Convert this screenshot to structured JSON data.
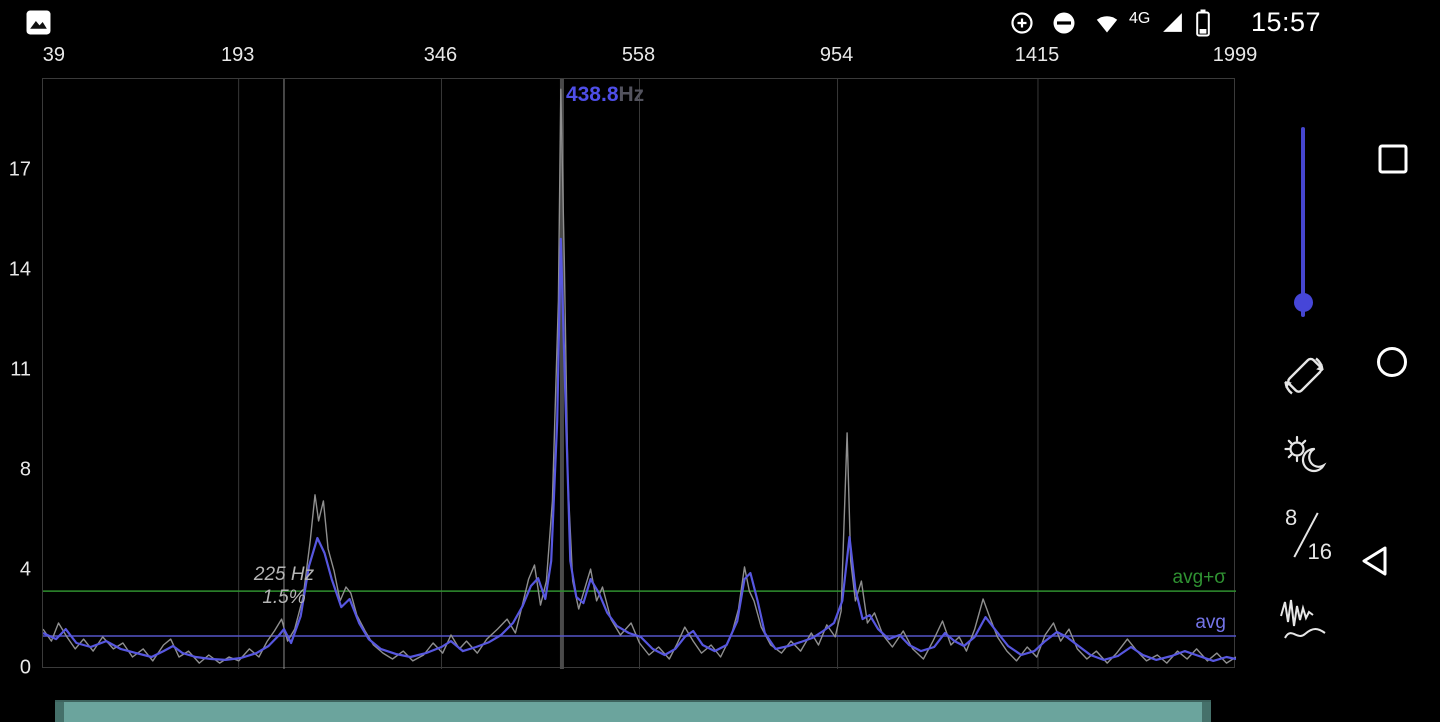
{
  "status_bar": {
    "time": "15:57",
    "network_type": "4G"
  },
  "side_panel": {
    "bit_depth_numerator": "8",
    "bit_depth_denominator": "16"
  },
  "bottom_bar": {
    "color": "#6ba49d"
  },
  "chart_data": {
    "type": "line",
    "x_axis": {
      "unit": "Hz",
      "ticks": [
        {
          "label": "39",
          "pos": 0.01
        },
        {
          "label": "193",
          "pos": 0.164
        },
        {
          "label": "346",
          "pos": 0.334
        },
        {
          "label": "558",
          "pos": 0.5
        },
        {
          "label": "954",
          "pos": 0.666
        },
        {
          "label": "1415",
          "pos": 0.834
        },
        {
          "label": "1999",
          "pos": 1.0
        }
      ]
    },
    "y_axis": {
      "unit": "%",
      "ticks": [
        {
          "label": "17",
          "pos": 0.156
        },
        {
          "label": "14",
          "pos": 0.325
        },
        {
          "label": "11",
          "pos": 0.495
        },
        {
          "label": "8",
          "pos": 0.664
        },
        {
          "label": "4",
          "pos": 0.834
        },
        {
          "label": "0",
          "pos": 1.0
        }
      ]
    },
    "y_scale": {
      "values": [
        0,
        4,
        8,
        11,
        14,
        17
      ],
      "pos": [
        1.0,
        0.834,
        0.664,
        0.495,
        0.325,
        0.156
      ]
    },
    "cursor": {
      "pos": 0.435,
      "value": "438.8",
      "unit": "Hz",
      "value_color": "#4e4ee8",
      "unit_color": "#53535e"
    },
    "marker": {
      "pos": 0.202,
      "freq_label": "225 Hz",
      "amp_label": "1.5%"
    },
    "reference_lines": [
      {
        "name": "avg-plus-sigma",
        "label": "avg+σ",
        "pos": 0.868,
        "color": "#2f8f2f",
        "label_color": "#2f9232"
      },
      {
        "name": "avg",
        "label": "avg",
        "pos": 0.944,
        "color": "#5555c8",
        "label_color": "#7474e8"
      }
    ],
    "series": [
      {
        "name": "raw",
        "color": "#8f8f8f",
        "width": 1.4,
        "points": [
          [
            0.0,
            1.63
          ],
          [
            0.007,
            1.14
          ],
          [
            0.013,
            1.88
          ],
          [
            0.02,
            1.31
          ],
          [
            0.027,
            0.82
          ],
          [
            0.034,
            1.22
          ],
          [
            0.042,
            0.73
          ],
          [
            0.05,
            1.31
          ],
          [
            0.059,
            0.82
          ],
          [
            0.067,
            1.06
          ],
          [
            0.075,
            0.49
          ],
          [
            0.084,
            0.82
          ],
          [
            0.092,
            0.33
          ],
          [
            0.101,
            0.98
          ],
          [
            0.107,
            1.22
          ],
          [
            0.114,
            0.49
          ],
          [
            0.122,
            0.73
          ],
          [
            0.131,
            0.24
          ],
          [
            0.139,
            0.57
          ],
          [
            0.148,
            0.24
          ],
          [
            0.156,
            0.49
          ],
          [
            0.164,
            0.33
          ],
          [
            0.173,
            0.82
          ],
          [
            0.181,
            0.49
          ],
          [
            0.188,
            1.14
          ],
          [
            0.194,
            1.55
          ],
          [
            0.2,
            2.04
          ],
          [
            0.205,
            1.14
          ],
          [
            0.211,
            1.63
          ],
          [
            0.218,
            2.94
          ],
          [
            0.224,
            5.2
          ],
          [
            0.228,
            7.04
          ],
          [
            0.231,
            6.0
          ],
          [
            0.235,
            6.8
          ],
          [
            0.239,
            4.88
          ],
          [
            0.244,
            4.0
          ],
          [
            0.249,
            2.78
          ],
          [
            0.254,
            3.35
          ],
          [
            0.258,
            3.1
          ],
          [
            0.263,
            2.2
          ],
          [
            0.27,
            1.55
          ],
          [
            0.277,
            0.98
          ],
          [
            0.285,
            0.65
          ],
          [
            0.293,
            0.41
          ],
          [
            0.302,
            0.73
          ],
          [
            0.31,
            0.33
          ],
          [
            0.319,
            0.57
          ],
          [
            0.327,
            1.06
          ],
          [
            0.335,
            0.65
          ],
          [
            0.342,
            1.39
          ],
          [
            0.349,
            0.82
          ],
          [
            0.355,
            1.14
          ],
          [
            0.364,
            0.65
          ],
          [
            0.372,
            1.22
          ],
          [
            0.381,
            1.63
          ],
          [
            0.389,
            2.04
          ],
          [
            0.396,
            1.47
          ],
          [
            0.401,
            2.45
          ],
          [
            0.407,
            3.67
          ],
          [
            0.412,
            4.24
          ],
          [
            0.417,
            2.61
          ],
          [
            0.422,
            3.59
          ],
          [
            0.427,
            6.8
          ],
          [
            0.432,
            13.1
          ],
          [
            0.434,
            19.46
          ],
          [
            0.437,
            14.3
          ],
          [
            0.44,
            7.6
          ],
          [
            0.444,
            3.59
          ],
          [
            0.449,
            2.45
          ],
          [
            0.454,
            3.27
          ],
          [
            0.459,
            4.08
          ],
          [
            0.464,
            2.78
          ],
          [
            0.469,
            3.35
          ],
          [
            0.476,
            2.04
          ],
          [
            0.484,
            1.39
          ],
          [
            0.493,
            1.88
          ],
          [
            0.5,
            1.06
          ],
          [
            0.508,
            0.57
          ],
          [
            0.516,
            0.9
          ],
          [
            0.525,
            0.41
          ],
          [
            0.531,
            0.98
          ],
          [
            0.538,
            1.71
          ],
          [
            0.545,
            1.14
          ],
          [
            0.552,
            0.65
          ],
          [
            0.56,
            0.98
          ],
          [
            0.568,
            0.49
          ],
          [
            0.577,
            1.39
          ],
          [
            0.583,
            2.45
          ],
          [
            0.588,
            4.16
          ],
          [
            0.592,
            3.19
          ],
          [
            0.596,
            2.78
          ],
          [
            0.602,
            1.71
          ],
          [
            0.61,
            0.98
          ],
          [
            0.619,
            0.65
          ],
          [
            0.627,
            1.14
          ],
          [
            0.635,
            0.73
          ],
          [
            0.644,
            1.47
          ],
          [
            0.65,
            0.98
          ],
          [
            0.657,
            1.8
          ],
          [
            0.664,
            1.31
          ],
          [
            0.669,
            2.37
          ],
          [
            0.674,
            9.14
          ],
          [
            0.677,
            4.4
          ],
          [
            0.681,
            2.78
          ],
          [
            0.686,
            3.59
          ],
          [
            0.691,
            1.88
          ],
          [
            0.697,
            2.29
          ],
          [
            0.704,
            1.39
          ],
          [
            0.712,
            0.9
          ],
          [
            0.721,
            1.55
          ],
          [
            0.729,
            0.82
          ],
          [
            0.738,
            0.41
          ],
          [
            0.746,
            1.14
          ],
          [
            0.754,
            1.96
          ],
          [
            0.761,
            0.98
          ],
          [
            0.768,
            1.31
          ],
          [
            0.774,
            0.73
          ],
          [
            0.781,
            1.63
          ],
          [
            0.788,
            2.86
          ],
          [
            0.793,
            2.2
          ],
          [
            0.8,
            1.31
          ],
          [
            0.808,
            0.73
          ],
          [
            0.816,
            0.33
          ],
          [
            0.825,
            0.9
          ],
          [
            0.833,
            0.49
          ],
          [
            0.84,
            1.39
          ],
          [
            0.847,
            1.88
          ],
          [
            0.853,
            1.14
          ],
          [
            0.86,
            1.63
          ],
          [
            0.867,
            0.82
          ],
          [
            0.875,
            0.41
          ],
          [
            0.883,
            0.73
          ],
          [
            0.892,
            0.24
          ],
          [
            0.9,
            0.65
          ],
          [
            0.909,
            1.22
          ],
          [
            0.917,
            0.73
          ],
          [
            0.925,
            0.33
          ],
          [
            0.934,
            0.57
          ],
          [
            0.942,
            0.24
          ],
          [
            0.951,
            0.73
          ],
          [
            0.959,
            0.41
          ],
          [
            0.967,
            0.82
          ],
          [
            0.976,
            0.33
          ],
          [
            0.984,
            0.65
          ],
          [
            0.992,
            0.24
          ],
          [
            1.0,
            0.49
          ]
        ]
      },
      {
        "name": "smoothed",
        "color": "#5757e0",
        "width": 2.2,
        "points": [
          [
            0.0,
            1.47
          ],
          [
            0.011,
            1.22
          ],
          [
            0.019,
            1.63
          ],
          [
            0.028,
            1.06
          ],
          [
            0.04,
            0.9
          ],
          [
            0.053,
            1.14
          ],
          [
            0.065,
            0.82
          ],
          [
            0.078,
            0.65
          ],
          [
            0.091,
            0.49
          ],
          [
            0.101,
            0.73
          ],
          [
            0.109,
            0.94
          ],
          [
            0.117,
            0.65
          ],
          [
            0.128,
            0.49
          ],
          [
            0.141,
            0.41
          ],
          [
            0.153,
            0.37
          ],
          [
            0.166,
            0.45
          ],
          [
            0.179,
            0.65
          ],
          [
            0.189,
            0.94
          ],
          [
            0.198,
            1.39
          ],
          [
            0.202,
            1.63
          ],
          [
            0.208,
            1.06
          ],
          [
            0.216,
            2.16
          ],
          [
            0.223,
            4.2
          ],
          [
            0.23,
            5.32
          ],
          [
            0.236,
            4.72
          ],
          [
            0.242,
            3.67
          ],
          [
            0.25,
            2.53
          ],
          [
            0.257,
            2.86
          ],
          [
            0.265,
            1.88
          ],
          [
            0.273,
            1.22
          ],
          [
            0.283,
            0.82
          ],
          [
            0.296,
            0.61
          ],
          [
            0.308,
            0.49
          ],
          [
            0.321,
            0.65
          ],
          [
            0.334,
            0.9
          ],
          [
            0.342,
            1.14
          ],
          [
            0.352,
            0.73
          ],
          [
            0.363,
            0.9
          ],
          [
            0.374,
            1.1
          ],
          [
            0.384,
            1.39
          ],
          [
            0.394,
            1.88
          ],
          [
            0.402,
            2.57
          ],
          [
            0.409,
            3.39
          ],
          [
            0.415,
            3.71
          ],
          [
            0.421,
            2.86
          ],
          [
            0.426,
            4.4
          ],
          [
            0.431,
            9.5
          ],
          [
            0.434,
            14.96
          ],
          [
            0.438,
            10.1
          ],
          [
            0.442,
            4.4
          ],
          [
            0.447,
            2.94
          ],
          [
            0.453,
            2.69
          ],
          [
            0.459,
            3.67
          ],
          [
            0.466,
            3.1
          ],
          [
            0.473,
            2.29
          ],
          [
            0.481,
            1.76
          ],
          [
            0.491,
            1.47
          ],
          [
            0.501,
            1.31
          ],
          [
            0.511,
            0.82
          ],
          [
            0.521,
            0.57
          ],
          [
            0.53,
            0.82
          ],
          [
            0.538,
            1.31
          ],
          [
            0.545,
            1.55
          ],
          [
            0.553,
            0.98
          ],
          [
            0.563,
            0.73
          ],
          [
            0.573,
            0.98
          ],
          [
            0.582,
            1.96
          ],
          [
            0.588,
            3.67
          ],
          [
            0.593,
            3.92
          ],
          [
            0.599,
            2.78
          ],
          [
            0.605,
            1.47
          ],
          [
            0.614,
            0.82
          ],
          [
            0.625,
            0.94
          ],
          [
            0.635,
            1.1
          ],
          [
            0.645,
            1.27
          ],
          [
            0.654,
            1.55
          ],
          [
            0.663,
            1.88
          ],
          [
            0.67,
            2.78
          ],
          [
            0.676,
            5.36
          ],
          [
            0.681,
            3.27
          ],
          [
            0.687,
            2.04
          ],
          [
            0.693,
            2.2
          ],
          [
            0.7,
            1.63
          ],
          [
            0.709,
            1.22
          ],
          [
            0.718,
            1.39
          ],
          [
            0.726,
            0.98
          ],
          [
            0.736,
            0.73
          ],
          [
            0.747,
            0.9
          ],
          [
            0.756,
            1.47
          ],
          [
            0.764,
            1.14
          ],
          [
            0.772,
            0.94
          ],
          [
            0.781,
            1.31
          ],
          [
            0.79,
            2.12
          ],
          [
            0.799,
            1.55
          ],
          [
            0.809,
            0.94
          ],
          [
            0.82,
            0.57
          ],
          [
            0.831,
            0.73
          ],
          [
            0.84,
            1.14
          ],
          [
            0.85,
            1.51
          ],
          [
            0.858,
            1.31
          ],
          [
            0.868,
            0.94
          ],
          [
            0.878,
            0.57
          ],
          [
            0.889,
            0.37
          ],
          [
            0.901,
            0.53
          ],
          [
            0.912,
            0.9
          ],
          [
            0.922,
            0.57
          ],
          [
            0.933,
            0.37
          ],
          [
            0.946,
            0.53
          ],
          [
            0.957,
            0.73
          ],
          [
            0.969,
            0.53
          ],
          [
            0.981,
            0.33
          ],
          [
            0.992,
            0.49
          ],
          [
            1.0,
            0.41
          ]
        ]
      }
    ]
  }
}
